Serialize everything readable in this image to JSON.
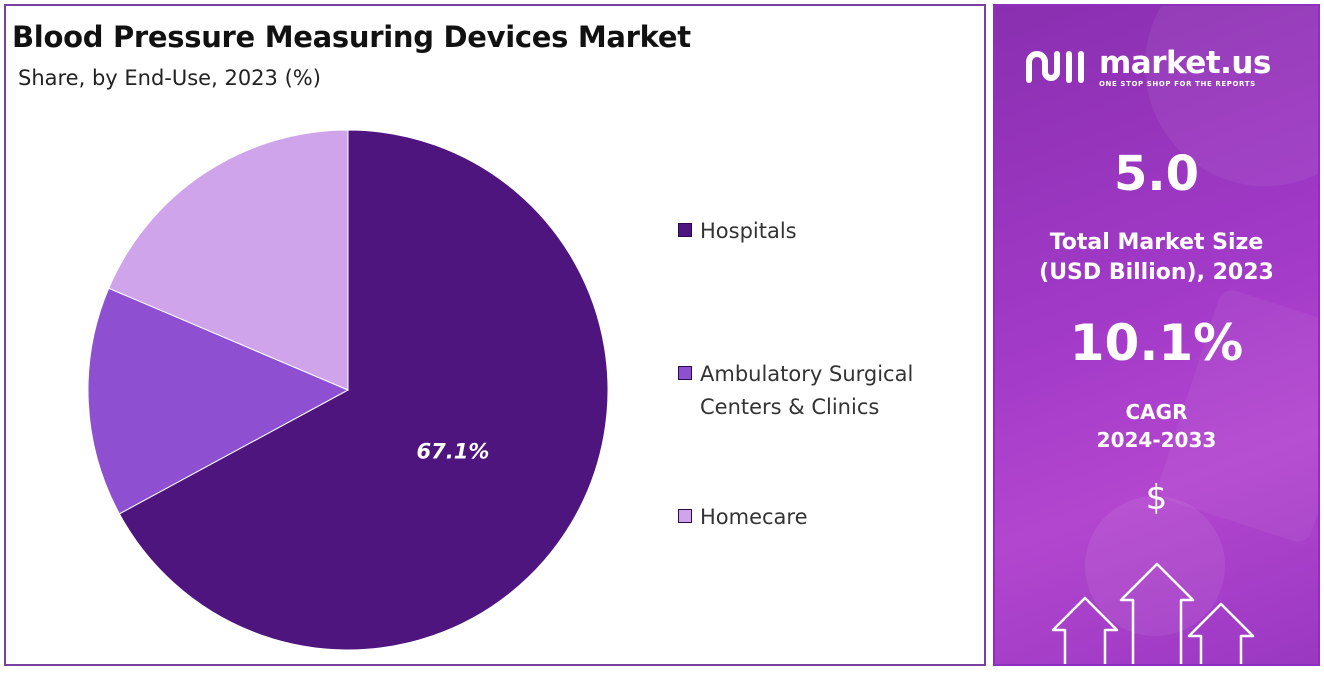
{
  "chart_data": {
    "type": "pie",
    "title": "Blood Pressure Measuring Devices Market",
    "subtitle": "Share, by End-Use, 2023 (%)",
    "categories": [
      "Hospitals",
      "Ambulatory Surgical\nCenters & Clinics",
      "Homecare"
    ],
    "values": [
      67.1,
      14.3,
      18.6
    ],
    "data_labels": [
      "67.1%",
      "",
      ""
    ],
    "colors": [
      "#4e157f",
      "#8e4fd1",
      "#cfa4ea"
    ],
    "legend_position": "right"
  },
  "side_panel": {
    "brand_name": "market.us",
    "brand_tagline": "ONE STOP SHOP FOR THE REPORTS",
    "market_size_value": "5.0",
    "market_size_label": "Total Market Size\n(USD Billion), 2023",
    "cagr_value": "10.1%",
    "cagr_label": "CAGR\n2024-2033",
    "currency_symbol": "$",
    "icons": [
      "market-us-logo-icon",
      "up-arrow-icon"
    ]
  }
}
